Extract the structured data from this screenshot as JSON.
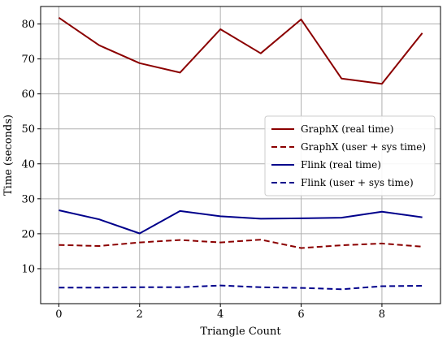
{
  "chart_data": {
    "type": "line",
    "xlabel": "Triangle Count",
    "ylabel": "Time (seconds)",
    "xlim": [
      -0.45,
      9.45
    ],
    "ylim": [
      0,
      85
    ],
    "xticks": [
      0,
      2,
      4,
      6,
      8
    ],
    "yticks": [
      10,
      20,
      30,
      40,
      50,
      60,
      70,
      80
    ],
    "grid": true,
    "legend_position": "center-right",
    "x": [
      0,
      1,
      2,
      3,
      4,
      5,
      6,
      7,
      8,
      9
    ],
    "series": [
      {
        "name": "GraphX (real time)",
        "color": "#8b0000",
        "dash": "solid",
        "values": [
          81.8,
          73.9,
          68.8,
          66.1,
          78.5,
          71.6,
          81.3,
          64.4,
          62.9,
          77.4
        ]
      },
      {
        "name": "GraphX (user + sys time)",
        "color": "#8b0000",
        "dash": "dashed",
        "values": [
          16.8,
          16.5,
          17.5,
          18.2,
          17.5,
          18.3,
          15.9,
          16.7,
          17.2,
          16.3
        ]
      },
      {
        "name": "Flink (real time)",
        "color": "#00008b",
        "dash": "solid",
        "values": [
          26.7,
          24.1,
          20.1,
          26.5,
          25.0,
          24.3,
          24.4,
          24.6,
          26.3,
          24.7
        ]
      },
      {
        "name": "Flink (user + sys time)",
        "color": "#00008b",
        "dash": "dashed",
        "values": [
          4.6,
          4.6,
          4.7,
          4.7,
          5.2,
          4.7,
          4.5,
          4.1,
          5.0,
          5.1
        ]
      }
    ]
  }
}
